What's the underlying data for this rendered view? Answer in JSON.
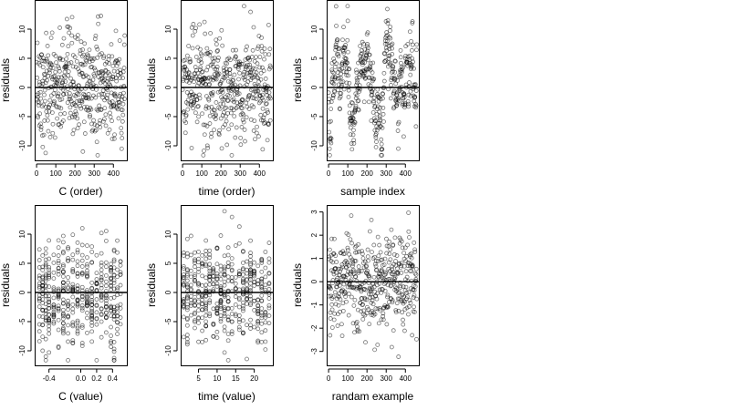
{
  "chart_data": [
    {
      "type": "scatter",
      "xlabel": "C (order)",
      "ylabel": "residuals",
      "xlim": [
        -10,
        470
      ],
      "ylim": [
        -12.5,
        15
      ],
      "xticks": [
        0,
        100,
        200,
        300,
        400
      ],
      "yticks": [
        -10,
        -5,
        0,
        5,
        10
      ],
      "ytick_labels": [
        "-10",
        "-5",
        "0",
        "5",
        "10"
      ],
      "hline": 0,
      "n_points": 460,
      "y_sd": 4.5,
      "pattern": "uniform"
    },
    {
      "type": "scatter",
      "xlabel": "time (order)",
      "ylabel": "residuals",
      "xlim": [
        -10,
        470
      ],
      "ylim": [
        -12.5,
        15
      ],
      "xticks": [
        0,
        100,
        200,
        300,
        400
      ],
      "yticks": [
        -10,
        -5,
        0,
        5,
        10
      ],
      "ytick_labels": [
        "-10",
        "-5",
        "0",
        "5",
        "10"
      ],
      "hline": 0,
      "n_points": 460,
      "y_sd": 4.5,
      "pattern": "uniform"
    },
    {
      "type": "scatter",
      "xlabel": "sample index",
      "ylabel": "residuals",
      "xlim": [
        -10,
        470
      ],
      "ylim": [
        -12.5,
        15
      ],
      "xticks": [
        0,
        100,
        200,
        300,
        400
      ],
      "yticks": [
        -10,
        -5,
        0,
        5,
        10
      ],
      "ytick_labels": [
        "-10",
        "-5",
        "0",
        "5",
        "10"
      ],
      "hline": 0,
      "n_points": 460,
      "y_sd": 4.5,
      "pattern": "autocorrelated"
    },
    {
      "type": "scatter",
      "xlabel": "C (value)",
      "ylabel": "residuals",
      "xlim": [
        -0.58,
        0.58
      ],
      "ylim": [
        -12.5,
        15
      ],
      "xticks": [
        -0.4,
        0.0,
        0.2,
        0.4
      ],
      "xtick_labels": [
        "-0.4",
        "0.0",
        "0.2",
        "0.4"
      ],
      "yticks": [
        -10,
        -5,
        0,
        5,
        10
      ],
      "ytick_labels": [
        "-10",
        "-5",
        "0",
        "5",
        "10"
      ],
      "hline": 0,
      "n_points": 460,
      "y_sd": 4.5,
      "pattern": "columns",
      "x_columns": [
        -0.52,
        -0.48,
        -0.44,
        -0.4,
        -0.34,
        -0.28,
        -0.22,
        -0.16,
        -0.1,
        -0.04,
        0.02,
        0.08,
        0.14,
        0.2,
        0.26,
        0.32,
        0.38,
        0.42,
        0.46,
        0.5
      ]
    },
    {
      "type": "scatter",
      "xlabel": "time (value)",
      "ylabel": "residuals",
      "xlim": [
        0.2,
        25
      ],
      "ylim": [
        -12.5,
        15
      ],
      "xticks": [
        5,
        10,
        15,
        20
      ],
      "yticks": [
        -10,
        -5,
        0,
        5,
        10
      ],
      "ytick_labels": [
        "-10",
        "-5",
        "0",
        "5",
        "10"
      ],
      "hline": 0,
      "n_points": 460,
      "y_sd": 4.5,
      "pattern": "columns",
      "x_columns": [
        1,
        2,
        3,
        4,
        5,
        6,
        7,
        8,
        9,
        10,
        11,
        12,
        13,
        14,
        15,
        16,
        17,
        18,
        19,
        20,
        21,
        22,
        23,
        24
      ]
    },
    {
      "type": "scatter",
      "xlabel": "randam example",
      "ylabel": "residuals",
      "xlim": [
        -10,
        470
      ],
      "ylim": [
        -3.6,
        3.3
      ],
      "xticks": [
        0,
        100,
        200,
        300,
        400
      ],
      "yticks": [
        -3,
        -2,
        -1,
        0,
        1,
        2,
        3
      ],
      "ytick_labels": [
        "-3",
        "-2",
        "-1",
        "0",
        "1",
        "2",
        "3"
      ],
      "hline": 0,
      "n_points": 460,
      "y_sd": 1.0,
      "pattern": "uniform"
    }
  ]
}
